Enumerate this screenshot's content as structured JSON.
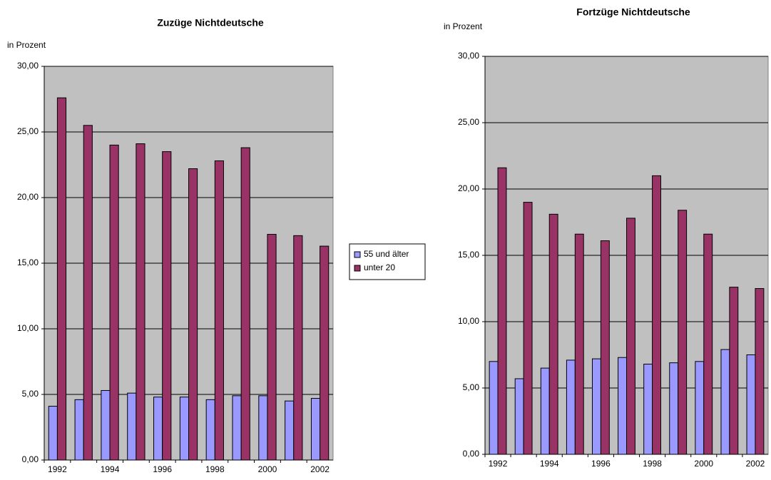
{
  "chart_data": [
    {
      "type": "bar",
      "title": "Zuzüge Nichtdeutsche",
      "y_label": "in Prozent",
      "categories": [
        "1992",
        null,
        "1994",
        null,
        "1996",
        null,
        "1998",
        null,
        "2000",
        null,
        "2002"
      ],
      "series": [
        {
          "name": "55 und älter",
          "color": "#9999ff",
          "values": [
            4.1,
            4.6,
            5.3,
            5.1,
            4.8,
            4.8,
            4.6,
            4.9,
            4.9,
            4.5,
            4.7
          ]
        },
        {
          "name": "unter 20",
          "color": "#993366",
          "values": [
            27.6,
            25.5,
            24.0,
            24.1,
            23.5,
            22.2,
            22.8,
            23.8,
            17.2,
            17.1,
            16.3
          ]
        }
      ],
      "ylim": [
        0,
        30
      ],
      "yticks": [
        {
          "value": 0,
          "label": "0,00"
        },
        {
          "value": 5,
          "label": "5,00"
        },
        {
          "value": 10,
          "label": "10,00"
        },
        {
          "value": 15,
          "label": "15,00"
        },
        {
          "value": 20,
          "label": "20,00"
        },
        {
          "value": 25,
          "label": "25,00"
        },
        {
          "value": 30,
          "label": "30,00"
        }
      ],
      "grid": true,
      "legend": "right"
    },
    {
      "type": "bar",
      "title": "Fortzüge Nichtdeutsche",
      "y_label": "in Prozent",
      "categories": [
        "1992",
        null,
        "1994",
        null,
        "1996",
        null,
        "1998",
        null,
        "2000",
        null,
        "2002"
      ],
      "series": [
        {
          "name": "55 und älter",
          "color": "#9999ff",
          "values": [
            7.0,
            5.7,
            6.5,
            7.1,
            7.2,
            7.3,
            6.8,
            6.9,
            7.0,
            7.9,
            7.5
          ]
        },
        {
          "name": "unter 20",
          "color": "#993366",
          "values": [
            21.6,
            19.0,
            18.1,
            16.6,
            16.1,
            17.8,
            21.0,
            18.4,
            16.6,
            12.6,
            12.5
          ]
        }
      ],
      "ylim": [
        0,
        30
      ],
      "yticks": [
        {
          "value": 0,
          "label": "0,00"
        },
        {
          "value": 5,
          "label": "5,00"
        },
        {
          "value": 10,
          "label": "10,00"
        },
        {
          "value": 15,
          "label": "15,00"
        },
        {
          "value": 20,
          "label": "20,00"
        },
        {
          "value": 25,
          "label": "25,00"
        },
        {
          "value": 30,
          "label": "30,00"
        }
      ],
      "grid": true
    }
  ]
}
